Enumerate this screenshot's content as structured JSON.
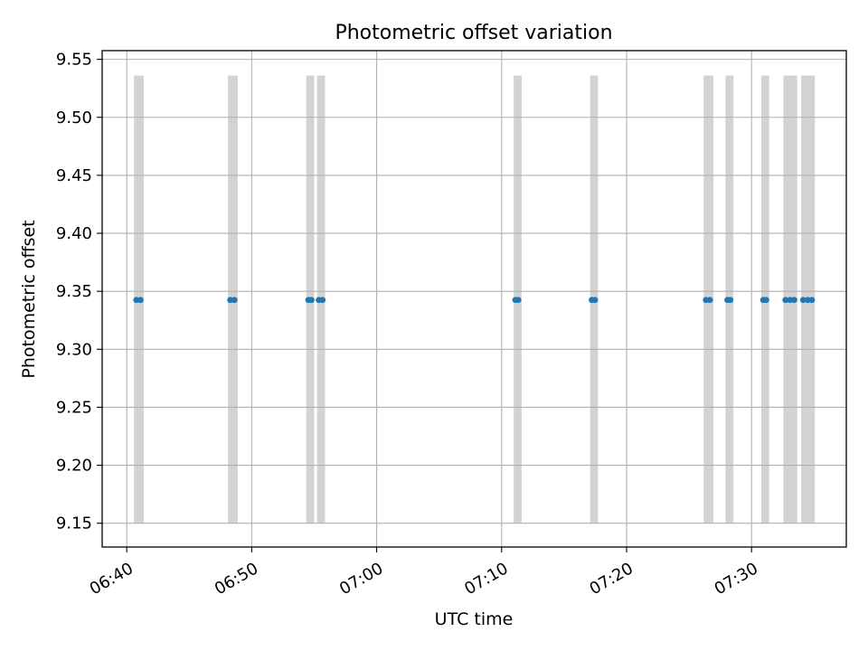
{
  "chart_data": {
    "type": "scatter",
    "title": "Photometric offset variation",
    "xlabel": "UTC time",
    "ylabel": "Photometric offset",
    "x_ticks": [
      "06:40",
      "06:50",
      "07:00",
      "07:10",
      "07:20",
      "07:30"
    ],
    "y_ticks": [
      "9.15",
      "9.20",
      "9.25",
      "9.30",
      "9.35",
      "9.40",
      "9.45",
      "9.50",
      "9.55"
    ],
    "xlim": [
      "06:38:02",
      "07:37:35"
    ],
    "ylim": [
      9.1295,
      9.5575
    ],
    "grid": true,
    "colors": {
      "points": "#1f77b4",
      "bands": "#d3d3d3",
      "grid": "#b0b0b0"
    },
    "shaded_band_y_range": [
      9.15,
      9.536
    ],
    "shaded_intervals": [
      [
        "06:40:35",
        "06:41:22"
      ],
      [
        "06:48:06",
        "06:48:53"
      ],
      [
        "06:54:22",
        "06:55:00"
      ],
      [
        "06:55:14",
        "06:55:52"
      ],
      [
        "07:10:58",
        "07:11:36"
      ],
      [
        "07:17:05",
        "07:17:43"
      ],
      [
        "07:26:10",
        "07:26:57"
      ],
      [
        "07:27:55",
        "07:28:33"
      ],
      [
        "07:30:47",
        "07:31:25"
      ],
      [
        "07:32:33",
        "07:33:39"
      ],
      [
        "07:33:58",
        "07:35:04"
      ]
    ],
    "series": [
      {
        "x": [
          "06:40:46",
          "06:41:06",
          "06:48:17",
          "06:48:37",
          "06:54:32",
          "06:54:47",
          "06:55:22",
          "06:55:40",
          "07:11:06",
          "07:11:20",
          "07:17:13",
          "07:17:28",
          "07:26:21",
          "07:26:40",
          "07:28:04",
          "07:28:18",
          "07:30:56",
          "07:31:10",
          "07:32:43",
          "07:33:05",
          "07:33:25",
          "07:34:08",
          "07:34:30",
          "07:34:50"
        ],
        "y": [
          9.3425,
          9.3425,
          9.3425,
          9.3425,
          9.3425,
          9.3425,
          9.3425,
          9.3425,
          9.3425,
          9.3425,
          9.3425,
          9.3425,
          9.3425,
          9.3425,
          9.3425,
          9.3425,
          9.3425,
          9.3425,
          9.3425,
          9.3425,
          9.3425,
          9.3425,
          9.3425,
          9.3425
        ]
      }
    ]
  }
}
